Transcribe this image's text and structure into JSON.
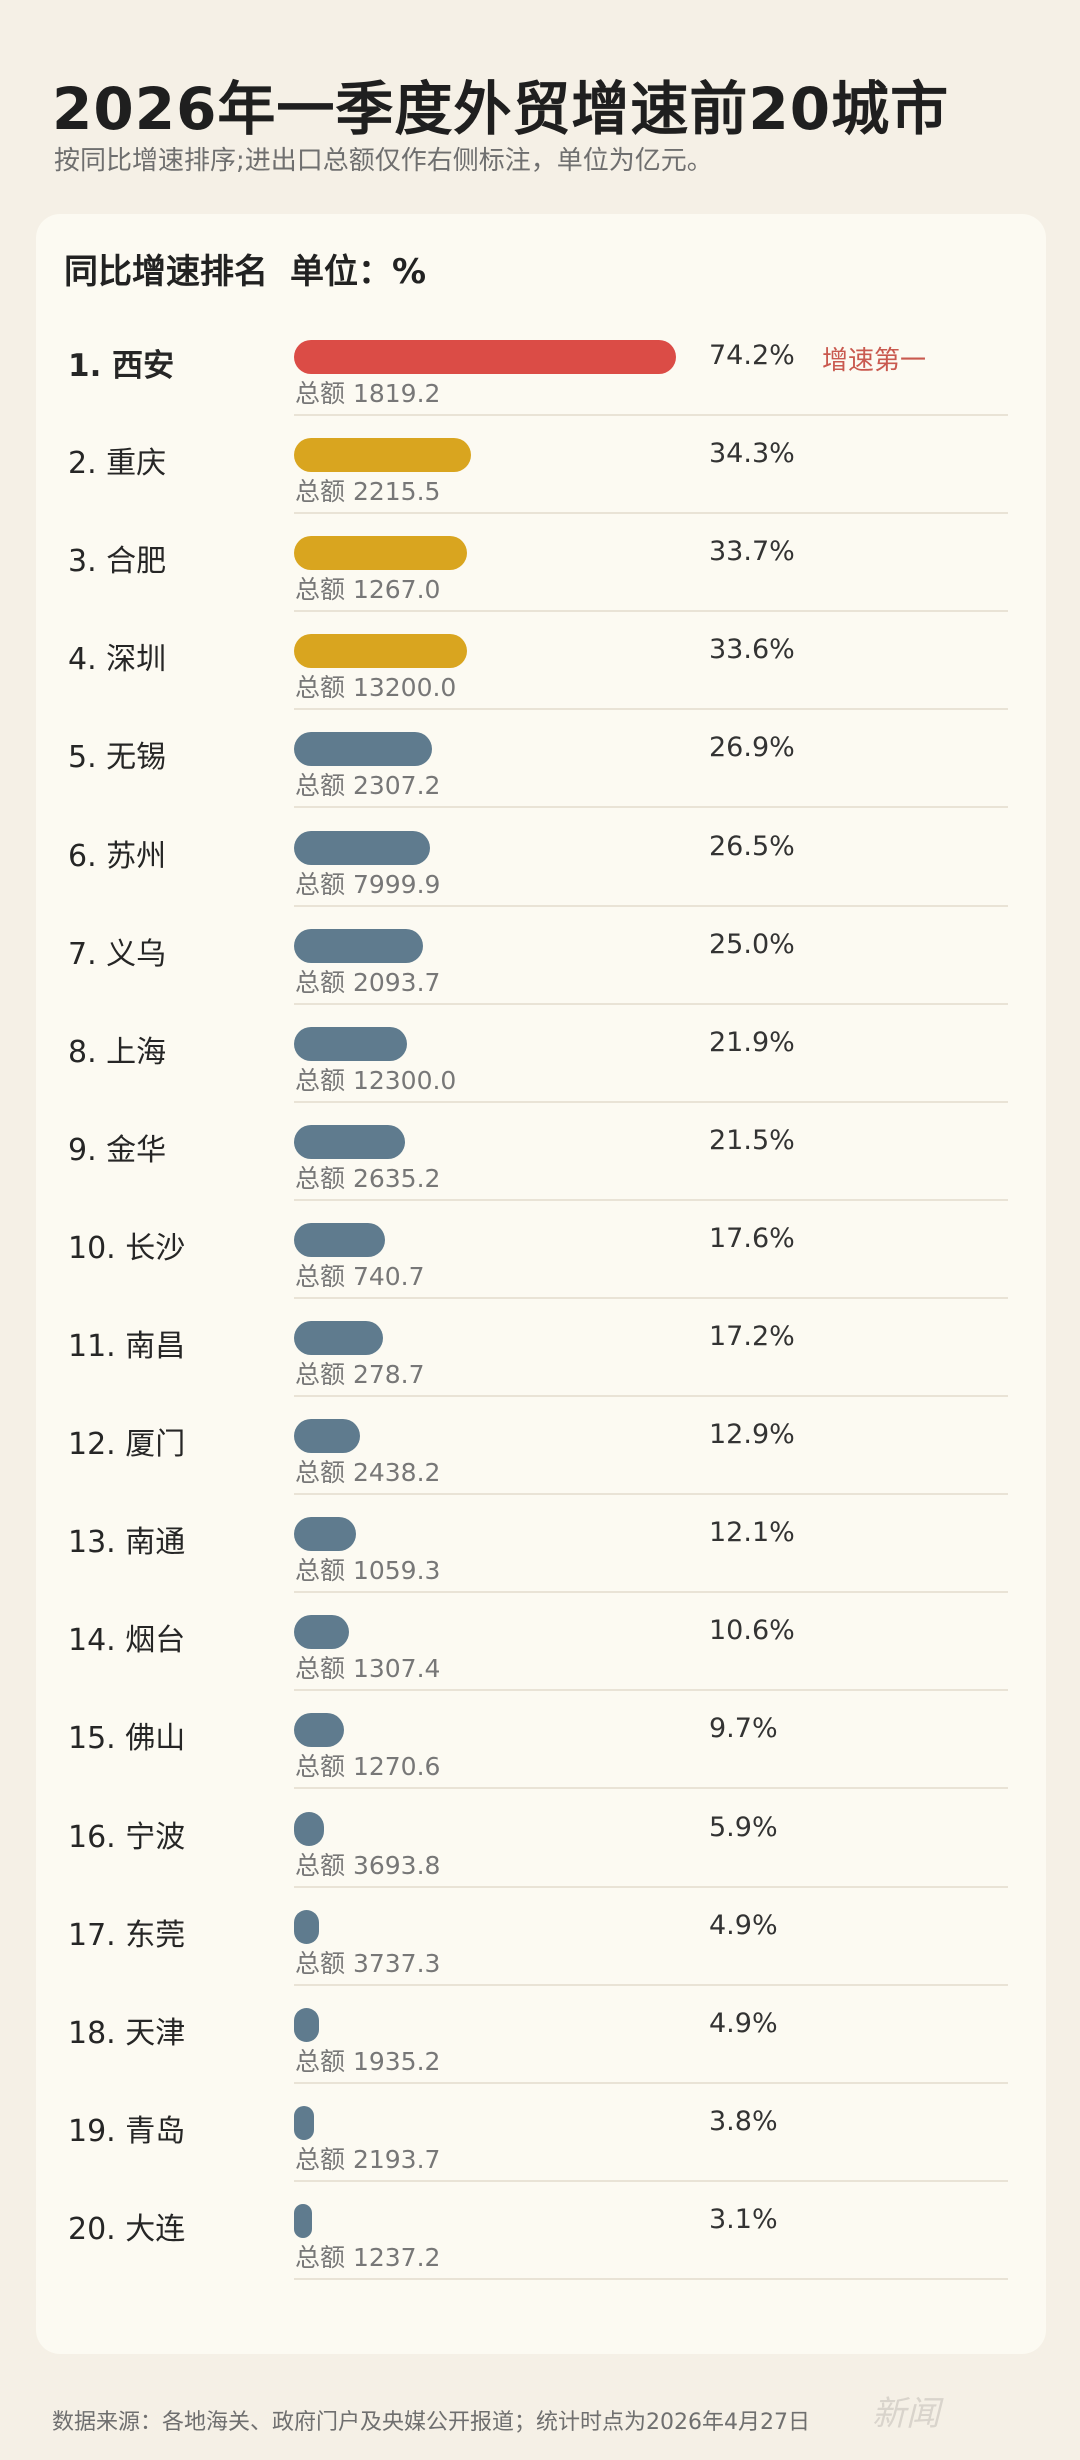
{
  "title": "2026年一季度外贸增速前20城市",
  "subtitle": "按同比增速排序;进出口总额仅作右侧标注，单位为亿元。",
  "card": {
    "header_label": "同比增速排名",
    "unit_label": "单位：%"
  },
  "footer": "数据来源：各地海关、政府门户及央媒公开报道；统计时点为2026年4月27日",
  "watermark": "新闻",
  "colors": {
    "top": "#db4c46",
    "top4": "#d9a51f",
    "others": "#5f7b8e"
  },
  "chart_data": {
    "type": "bar",
    "orientation": "horizontal",
    "unit": "%",
    "categories": [
      "1. 西安",
      "2. 重庆",
      "3. 合肥",
      "4. 深圳",
      "5. 无锡",
      "6. 苏州",
      "7. 义乌",
      "8. 上海",
      "9. 金华",
      "10. 长沙",
      "11. 南昌",
      "12. 厦门",
      "13. 南通",
      "14. 烟台",
      "15. 佛山",
      "16. 宁波",
      "17. 东莞",
      "18. 天津",
      "19. 青岛",
      "20. 大连"
    ],
    "values": [
      74.2,
      34.3,
      33.7,
      33.6,
      26.9,
      26.5,
      25.0,
      21.9,
      21.5,
      17.6,
      17.2,
      12.9,
      12.1,
      10.6,
      9.7,
      5.9,
      4.9,
      4.9,
      3.8,
      3.1
    ],
    "value_labels": [
      "74.2%",
      "34.3%",
      "33.7%",
      "33.6%",
      "26.9%",
      "26.5%",
      "25.0%",
      "21.9%",
      "21.5%",
      "17.6%",
      "17.2%",
      "12.9%",
      "12.1%",
      "10.6%",
      "9.7%",
      "5.9%",
      "4.9%",
      "4.9%",
      "3.8%",
      "3.1%"
    ],
    "totals": [
      "总额 1819.2",
      "总额 2215.5",
      "总额 1267.0",
      "总额 13200.0",
      "总额 2307.2",
      "总额 7999.9",
      "总额 2093.7",
      "总额 12300.0",
      "总额 2635.2",
      "总额 740.7",
      "总额 278.7",
      "总额 2438.2",
      "总额 1059.3",
      "总额 1307.4",
      "总额 1270.6",
      "总额 3693.8",
      "总额 3737.3",
      "总额 1935.2",
      "总额 2193.7",
      "总额 1237.2"
    ],
    "annotations": [
      {
        "index": 0,
        "text": "增速第一"
      }
    ],
    "xlim": [
      0,
      74.2
    ]
  }
}
